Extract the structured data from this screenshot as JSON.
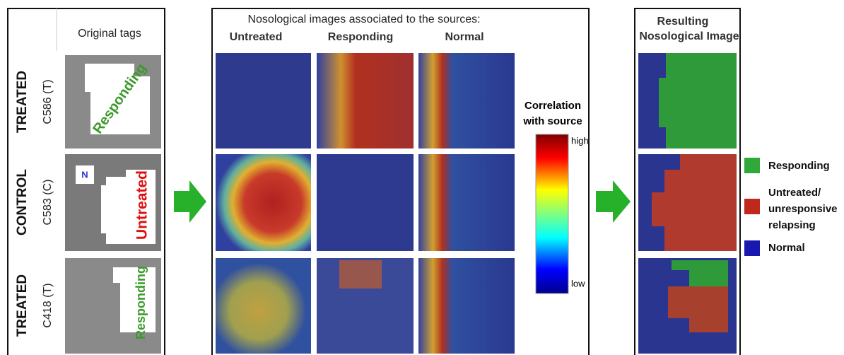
{
  "left_panel": {
    "header": "Original tags",
    "rows": [
      {
        "group": "TREATED",
        "id": "C586 (T)",
        "tag": "Responding"
      },
      {
        "group": "CONTROL",
        "id": "C583 (C)",
        "tag": "Untreated",
        "extra_tag": "N"
      },
      {
        "group": "TREATED",
        "id": "C418 (T)",
        "tag": "Responding"
      }
    ]
  },
  "middle_panel": {
    "title": "Nosological images associated to the sources:",
    "columns": [
      "Untreated",
      "Responding",
      "Normal"
    ]
  },
  "colorbar": {
    "title": [
      "Correlation",
      "with source"
    ],
    "high": "high",
    "low": "low"
  },
  "right_panel": {
    "title": [
      "Resulting",
      "Nosological Image"
    ]
  },
  "legend": [
    {
      "label": [
        "Responding"
      ]
    },
    {
      "label": [
        "Untreated/",
        "unresponsive",
        "relapsing"
      ]
    },
    {
      "label": [
        "Normal"
      ]
    }
  ]
}
